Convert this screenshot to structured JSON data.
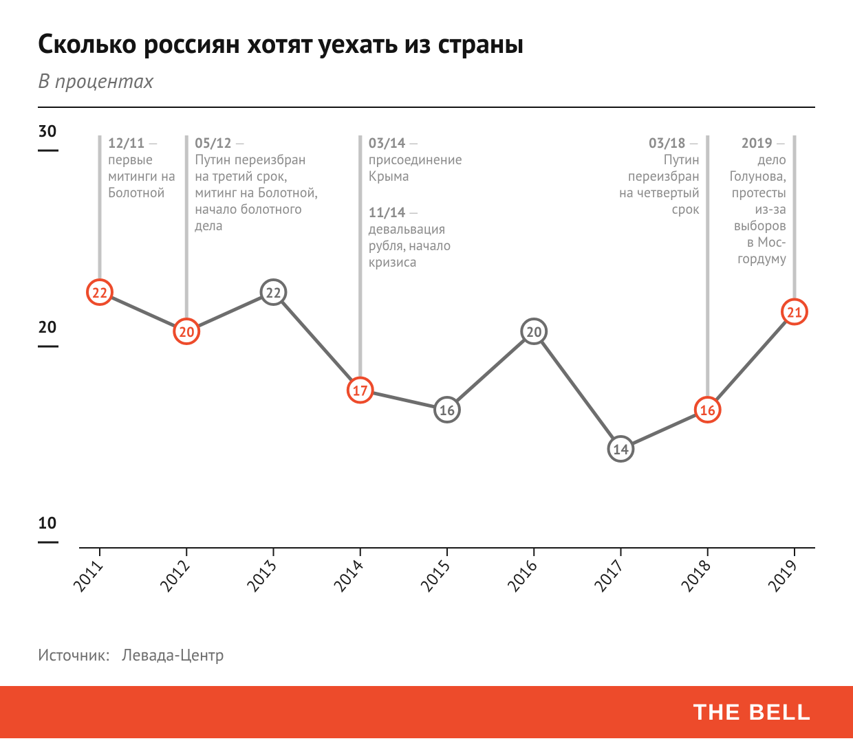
{
  "header": {
    "title": "Сколько россиян хотят уехать из страны",
    "subtitle": "В процентах"
  },
  "chart": {
    "type": "line",
    "years": [
      "2011",
      "2012",
      "2013",
      "2014",
      "2015",
      "2016",
      "2017",
      "2018",
      "2019"
    ],
    "values": [
      22,
      20,
      22,
      17,
      16,
      20,
      14,
      16,
      21
    ],
    "highlight": [
      true,
      true,
      false,
      true,
      false,
      false,
      false,
      true,
      true
    ],
    "ylim": [
      10,
      30
    ],
    "yticks": [
      10,
      20,
      30
    ],
    "line_color": "#6d6d6d",
    "line_width": 5,
    "marker_radius": 18,
    "marker_stroke_width": 4,
    "marker_fill": "#ffffff",
    "color_highlight": "#ed4b2b",
    "color_normal": "#6d6d6d",
    "background_color": "#ffffff",
    "axis_color": "#1a1a1a",
    "tick_color": "#1a1a1a",
    "annotation_line_color": "#c4c4c4",
    "annotations": [
      {
        "year": "2011",
        "date": "12/11",
        "lines": [
          "первые",
          "митинги на",
          "Болотной"
        ],
        "side": "right"
      },
      {
        "year": "2012",
        "date": "05/12",
        "lines": [
          "Путин переизбран",
          "на третий срок,",
          "митинг на Болотной,",
          "начало болотного",
          "дела"
        ],
        "side": "right"
      },
      {
        "year": "2014",
        "date": "03/14",
        "lines": [
          "присоединение",
          "Крыма"
        ],
        "side": "right"
      },
      {
        "year": "2014_b",
        "date": "11/14",
        "lines": [
          "девальвация",
          "рубля, начало",
          "кризиса"
        ],
        "side": "right"
      },
      {
        "year": "2018",
        "date": "03/18",
        "lines": [
          "Путин",
          "переизбран",
          "на четвертый",
          "срок"
        ],
        "side": "left"
      },
      {
        "year": "2019",
        "date": "2019",
        "lines": [
          "дело",
          "Голунова,",
          "протесты",
          "из-за",
          "выборов",
          "в Мос-",
          "гордуму"
        ],
        "side": "left"
      }
    ]
  },
  "source": {
    "label": "Источник:",
    "value": "Левада-Центр"
  },
  "footer": {
    "brand": "THE BELL",
    "background_color": "#ed4b2b",
    "text_color": "#ffffff"
  }
}
